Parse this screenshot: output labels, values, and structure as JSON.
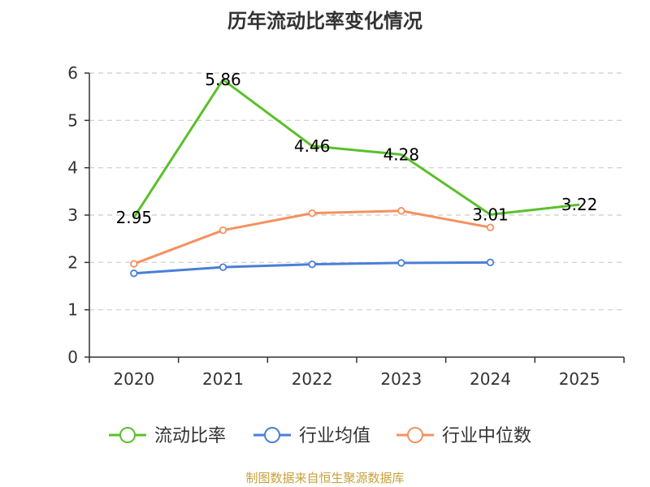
{
  "title": "历年流动比率变化情况",
  "source": "制图数据来自恒生聚源数据库",
  "chart_data": {
    "type": "line",
    "title": "历年流动比率变化情况",
    "xlabel": "",
    "ylabel": "",
    "categories": [
      "2020",
      "2021",
      "2022",
      "2023",
      "2024",
      "2025"
    ],
    "ylim": [
      0,
      6
    ],
    "yticks": [
      0,
      1,
      2,
      3,
      4,
      5,
      6
    ],
    "grid": true,
    "legend_position": "bottom",
    "series": [
      {
        "name": "流动比率",
        "color": "#5bc02a",
        "values": [
          2.95,
          5.86,
          4.46,
          4.28,
          3.01,
          3.22
        ],
        "labels": [
          "2.95",
          "5.86",
          "4.46",
          "4.28",
          "3.01",
          "3.22"
        ]
      },
      {
        "name": "行业均值",
        "color": "#4a7fd8",
        "values": [
          1.77,
          1.9,
          1.96,
          1.99,
          2.0,
          null
        ]
      },
      {
        "name": "行业中位数",
        "color": "#f59160",
        "values": [
          1.97,
          2.68,
          3.04,
          3.09,
          2.74,
          null
        ]
      }
    ]
  }
}
